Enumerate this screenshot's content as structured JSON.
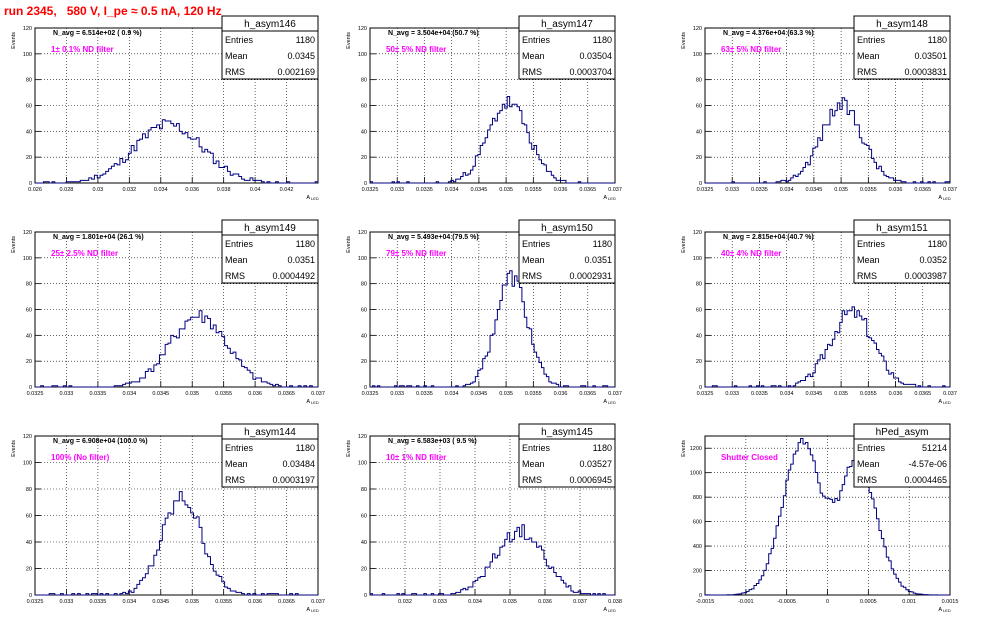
{
  "title": "run 2345,   580 V, I_pe ≈ 0.5 nA, 120 Hz",
  "colors": {
    "histogram": "#000080",
    "annotation": "#ff00ff",
    "title": "#ff0000",
    "grid": "#000000"
  },
  "stats_labels": {
    "entries": "Entries",
    "mean": "Mean",
    "rms": "RMS"
  },
  "chart_data": [
    {
      "type": "histogram",
      "name": "h_asym146",
      "ylabel": "Events",
      "xlabel": "A",
      "xlabel_subscript": "LED",
      "navg": "N_avg = 6.514e+02 ( 0.9 %)",
      "filter": "1± 0.1% ND filter",
      "entries": "1180",
      "mean": "0.0345",
      "rms": "0.002169",
      "xlim": [
        0.026,
        0.044
      ],
      "ylim": [
        0,
        120
      ],
      "xticks": [
        "0.026",
        "0.028",
        "0.03",
        "0.032",
        "0.034",
        "0.036",
        "0.038",
        "0.04",
        "0.042"
      ],
      "yticks": [
        "0",
        "20",
        "40",
        "60",
        "80",
        "100",
        "120"
      ],
      "grid": true,
      "mean_val": 0.0345,
      "rms_val": 0.002169,
      "peak": 45,
      "seed": 11
    },
    {
      "type": "histogram",
      "name": "h_asym147",
      "ylabel": "Events",
      "xlabel": "A",
      "xlabel_subscript": "LED",
      "navg": "N_avg = 3.504e+04 (50.7 %)",
      "filter": "50± 5% ND filter",
      "entries": "1180",
      "mean": "0.03504",
      "rms": "0.0003704",
      "xlim": [
        0.0325,
        0.037
      ],
      "ylim": [
        0,
        120
      ],
      "xticks": [
        "0.0325",
        "0.033",
        "0.0335",
        "0.034",
        "0.0345",
        "0.035",
        "0.0355",
        "0.036",
        "0.0365",
        "0.037"
      ],
      "yticks": [
        "0",
        "20",
        "40",
        "60",
        "80",
        "100",
        "120"
      ],
      "grid": true,
      "mean_val": 0.03504,
      "rms_val": 0.0003704,
      "peak": 62,
      "seed": 23
    },
    {
      "type": "histogram",
      "name": "h_asym148",
      "ylabel": "Events",
      "xlabel": "A",
      "xlabel_subscript": "LED",
      "navg": "N_avg = 4.376e+04 (63.3 %)",
      "filter": "63± 5% ND filter",
      "entries": "1180",
      "mean": "0.03501",
      "rms": "0.0003831",
      "xlim": [
        0.0325,
        0.037
      ],
      "ylim": [
        0,
        120
      ],
      "xticks": [
        "0.0325",
        "0.033",
        "0.0335",
        "0.034",
        "0.0345",
        "0.035",
        "0.0355",
        "0.036",
        "0.0365",
        "0.037"
      ],
      "yticks": [
        "0",
        "20",
        "40",
        "60",
        "80",
        "100",
        "120"
      ],
      "grid": true,
      "mean_val": 0.03501,
      "rms_val": 0.0003831,
      "peak": 60,
      "seed": 37
    },
    {
      "type": "histogram",
      "name": "h_asym149",
      "ylabel": "Events",
      "xlabel": "A",
      "xlabel_subscript": "LED",
      "navg": "N_avg = 1.801e+04 (26.1 %)",
      "filter": "25± 2.5% ND filter",
      "entries": "1180",
      "mean": "0.0351",
      "rms": "0.0004492",
      "xlim": [
        0.0325,
        0.037
      ],
      "ylim": [
        0,
        120
      ],
      "xticks": [
        "0.0325",
        "0.033",
        "0.0335",
        "0.034",
        "0.0345",
        "0.035",
        "0.0355",
        "0.036",
        "0.0365",
        "0.037"
      ],
      "yticks": [
        "0",
        "20",
        "40",
        "60",
        "80",
        "100",
        "120"
      ],
      "grid": true,
      "mean_val": 0.0351,
      "rms_val": 0.0004492,
      "peak": 55,
      "seed": 41
    },
    {
      "type": "histogram",
      "name": "h_asym150",
      "ylabel": "Events",
      "xlabel": "A",
      "xlabel_subscript": "LED",
      "navg": "N_avg = 5.493e+04 (79.5 %)",
      "filter": "79± 5% ND filter",
      "entries": "1180",
      "mean": "0.0351",
      "rms": "0.0002931",
      "xlim": [
        0.0325,
        0.037
      ],
      "ylim": [
        0,
        120
      ],
      "xticks": [
        "0.0325",
        "0.033",
        "0.0335",
        "0.034",
        "0.0345",
        "0.035",
        "0.0355",
        "0.036",
        "0.0365",
        "0.037"
      ],
      "yticks": [
        "0",
        "20",
        "40",
        "60",
        "80",
        "100",
        "120"
      ],
      "grid": true,
      "mean_val": 0.0351,
      "rms_val": 0.0002931,
      "peak": 85,
      "seed": 53
    },
    {
      "type": "histogram",
      "name": "h_asym151",
      "ylabel": "Events",
      "xlabel": "A",
      "xlabel_subscript": "LED",
      "navg": "N_avg = 2.815e+04 (40.7 %)",
      "filter": "40± 4% ND filter",
      "entries": "1180",
      "mean": "0.0352",
      "rms": "0.0003987",
      "xlim": [
        0.0325,
        0.037
      ],
      "ylim": [
        0,
        120
      ],
      "xticks": [
        "0.0325",
        "0.033",
        "0.0335",
        "0.034",
        "0.0345",
        "0.035",
        "0.0355",
        "0.036",
        "0.0365",
        "0.037"
      ],
      "yticks": [
        "0",
        "20",
        "40",
        "60",
        "80",
        "100",
        "120"
      ],
      "grid": true,
      "mean_val": 0.0352,
      "rms_val": 0.0003987,
      "peak": 58,
      "seed": 67
    },
    {
      "type": "histogram",
      "name": "h_asym144",
      "ylabel": "Events",
      "xlabel": "A",
      "xlabel_subscript": "LED",
      "navg": "N_avg = 6.908e+04 (100.0 %)",
      "filter": "100% (No filter)",
      "entries": "1180",
      "mean": "0.03484",
      "rms": "0.0003197",
      "xlim": [
        0.0325,
        0.037
      ],
      "ylim": [
        0,
        120
      ],
      "xticks": [
        "0.0325",
        "0.033",
        "0.0335",
        "0.034",
        "0.0345",
        "0.035",
        "0.0355",
        "0.036",
        "0.0365",
        "0.037"
      ],
      "yticks": [
        "0",
        "20",
        "40",
        "60",
        "80",
        "100",
        "120"
      ],
      "grid": true,
      "mean_val": 0.03484,
      "rms_val": 0.0003197,
      "peak": 73,
      "seed": 79
    },
    {
      "type": "histogram",
      "name": "h_asym145",
      "ylabel": "Events",
      "xlabel": "A",
      "xlabel_subscript": "LED",
      "navg": "N_avg = 6.583e+03 ( 9.5 %)",
      "filter": "10± 1% ND filter",
      "entries": "1180",
      "mean": "0.03527",
      "rms": "0.0006945",
      "xlim": [
        0.031,
        0.038
      ],
      "ylim": [
        0,
        120
      ],
      "xticks": [
        "0.032",
        "0.033",
        "0.034",
        "0.035",
        "0.036",
        "0.037",
        "0.038"
      ],
      "yticks": [
        "0",
        "20",
        "40",
        "60",
        "80",
        "100",
        "120"
      ],
      "grid": true,
      "mean_val": 0.03527,
      "rms_val": 0.0006945,
      "peak": 48,
      "seed": 97
    },
    {
      "type": "histogram",
      "name": "hPed_asym",
      "ylabel": "Events",
      "xlabel": "A",
      "xlabel_subscript": "LED",
      "navg": "",
      "filter": "Shutter Closed",
      "entries": "51214",
      "mean": "-4.57e-06",
      "rms": "0.0004465",
      "xlim": [
        -0.0015,
        0.0015
      ],
      "ylim": [
        0,
        1300
      ],
      "xticks": [
        "-0.0015",
        "-0.001",
        "-0.0005",
        "0",
        "0.0005",
        "0.001",
        "0.0015"
      ],
      "yticks": [
        "0",
        "200",
        "400",
        "600",
        "800",
        "1000",
        "1200"
      ],
      "grid": true,
      "mean_val": -4.57e-06,
      "rms_val": 0.0004465,
      "peak": 1260,
      "bimodal": true,
      "seed": 101
    }
  ]
}
